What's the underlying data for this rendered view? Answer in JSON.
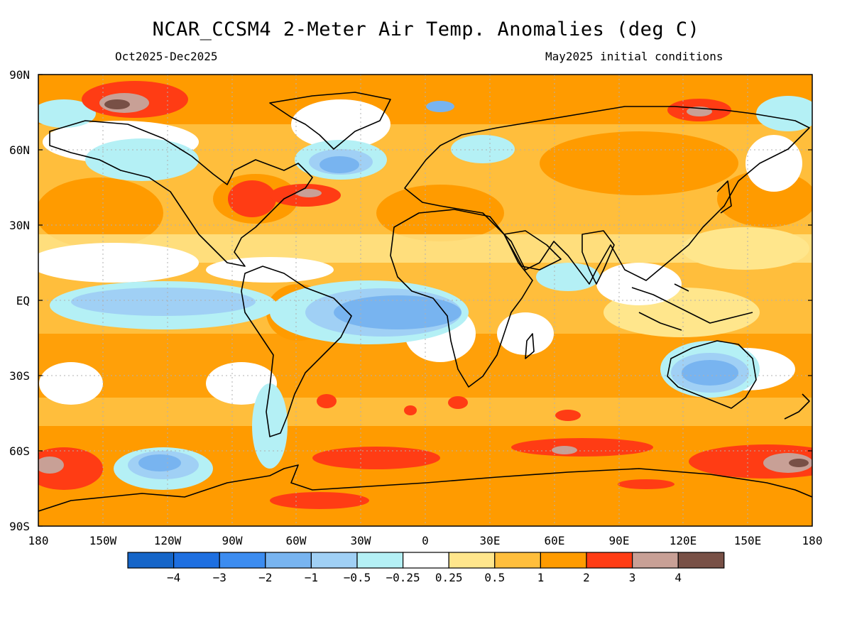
{
  "header": {
    "title": "NCAR_CCSM4 2-Meter Air Temp. Anomalies (deg C)",
    "period": "Oct2025-Dec2025",
    "init": "May2025 initial conditions"
  },
  "axes": {
    "lat_ticks": [
      "90N",
      "60N",
      "30N",
      "EQ",
      "30S",
      "60S",
      "90S"
    ],
    "lon_ticks": [
      "180",
      "150W",
      "120W",
      "90W",
      "60W",
      "30W",
      "0",
      "30E",
      "60E",
      "90E",
      "120E",
      "150E",
      "180"
    ]
  },
  "colorbar": {
    "colors": [
      "#1565c8",
      "#1e6fe0",
      "#3c8cf0",
      "#78b4f0",
      "#a0d0f5",
      "#b4f0f5",
      "#ffffff",
      "#ffe68c",
      "#ffbe3c",
      "#ff9b00",
      "#ff3c14",
      "#c8a096",
      "#785046"
    ],
    "labels": [
      "-4",
      "-3",
      "-2",
      "-1",
      "-0.5",
      "-0.25",
      "0.25",
      "0.5",
      "1",
      "2",
      "3",
      "4"
    ]
  }
}
